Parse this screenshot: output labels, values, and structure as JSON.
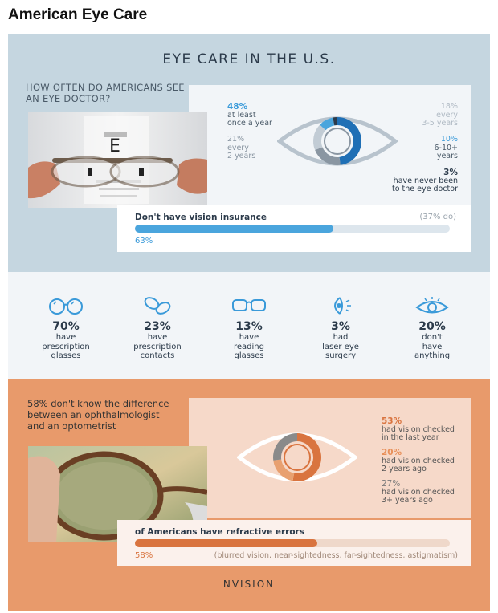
{
  "page_title": "American Eye Care",
  "section1": {
    "title": "EYE CARE IN THE U.S.",
    "question": "HOW OFTEN DO AMERICANS SEE AN EYE DOCTOR?",
    "stats": [
      {
        "pct": "48%",
        "line1": "at least",
        "line2": "once a year",
        "color": "#1f6fb5"
      },
      {
        "pct": "21%",
        "line1": "every",
        "line2": "2 years",
        "color": "#8a96a2"
      },
      {
        "pct": "18%",
        "line1": "every",
        "line2": "3-5 years",
        "color": "#c2ccd5"
      },
      {
        "pct": "10%",
        "line1": "6-10+",
        "line2": "years",
        "color": "#3a9ad9"
      },
      {
        "pct": "3%",
        "line1": "have never been",
        "line2": "to the eye doctor",
        "color": "#2b3a4a"
      }
    ],
    "insurance": {
      "label": "Don't have vision insurance",
      "value_label": "63%",
      "value": 63,
      "aside": "(37% do)",
      "color": "#3a9ad9"
    }
  },
  "section2": {
    "items": [
      {
        "icon": "glasses-icon",
        "pct": "70%",
        "l1": "have",
        "l2": "prescription",
        "l3": "glasses"
      },
      {
        "icon": "contacts-icon",
        "pct": "23%",
        "l1": "have",
        "l2": "prescription",
        "l3": "contacts"
      },
      {
        "icon": "reading-glasses-icon",
        "pct": "13%",
        "l1": "have",
        "l2": "reading",
        "l3": "glasses"
      },
      {
        "icon": "laser-eye-icon",
        "pct": "3%",
        "l1": "had",
        "l2": "laser eye",
        "l3": "surgery"
      },
      {
        "icon": "eye-icon",
        "pct": "20%",
        "l1": "don't",
        "l2": "have",
        "l3": "anything"
      }
    ]
  },
  "section3": {
    "question_line1": "58% don't know the difference",
    "question_line2": "between an ophthalmologist",
    "question_line3": "and an optometrist",
    "stats": [
      {
        "pct": "53%",
        "line1": "had vision checked",
        "line2": "in the last year",
        "color": "#d9743f"
      },
      {
        "pct": "20%",
        "line1": "had vision checked",
        "line2": "2 years ago",
        "color": "#e8a070"
      },
      {
        "pct": "27%",
        "line1": "had vision checked",
        "line2": "3+ years ago",
        "color": "#8a8a8a"
      }
    ],
    "refractive": {
      "label": "of Americans have refractive errors",
      "value_label": "58%",
      "value": 58,
      "aside": "(blurred vision, near-sightedness, far-sightedness, astigmatism)",
      "color": "#d9743f"
    }
  },
  "logo": "NVISION",
  "chart_data": [
    {
      "type": "pie",
      "title": "HOW OFTEN DO AMERICANS SEE AN EYE DOCTOR?",
      "categories": [
        "at least once a year",
        "every 2 years",
        "every 3-5 years",
        "6-10+ years",
        "have never been to the eye doctor"
      ],
      "values": [
        48,
        21,
        18,
        10,
        3
      ]
    },
    {
      "type": "bar",
      "categories": [
        "Don't have vision insurance"
      ],
      "values": [
        63
      ],
      "xlim": [
        0,
        100
      ]
    },
    {
      "type": "pie",
      "categories": [
        "had vision checked in the last year",
        "had vision checked 2 years ago",
        "had vision checked 3+ years ago"
      ],
      "values": [
        53,
        20,
        27
      ]
    },
    {
      "type": "bar",
      "categories": [
        "of Americans have refractive errors"
      ],
      "values": [
        58
      ],
      "xlim": [
        0,
        100
      ]
    }
  ]
}
